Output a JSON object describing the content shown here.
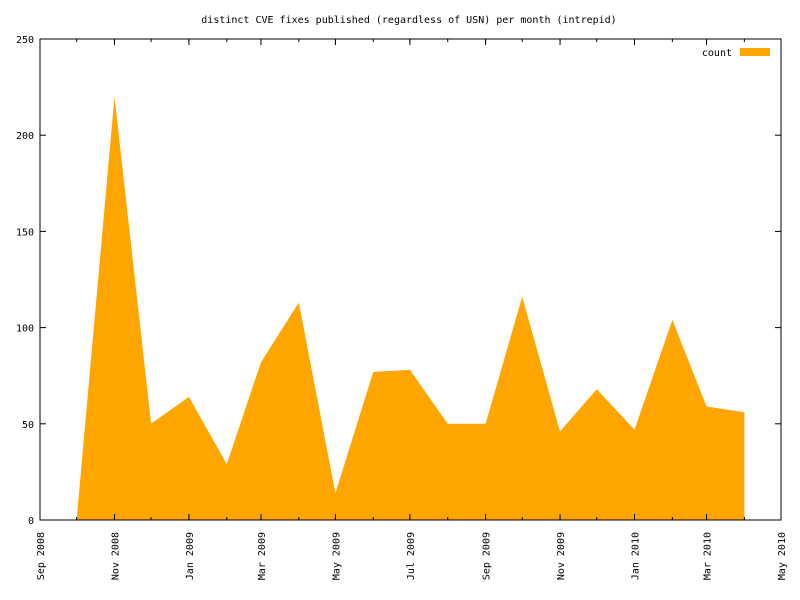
{
  "chart_data": {
    "type": "area",
    "title": "distinct CVE fixes published (regardless of USN) per month (intrepid)",
    "xlabel": "",
    "ylabel": "",
    "ylim": [
      0,
      250
    ],
    "yticks": [
      0,
      50,
      100,
      150,
      200,
      250
    ],
    "xlim": [
      "2008-09-01",
      "2010-05-01"
    ],
    "xticks": [
      {
        "date": "2008-09-01",
        "label": "Sep 2008"
      },
      {
        "date": "2008-11-01",
        "label": "Nov 2008"
      },
      {
        "date": "2009-01-01",
        "label": "Jan 2009"
      },
      {
        "date": "2009-03-01",
        "label": "Mar 2009"
      },
      {
        "date": "2009-05-01",
        "label": "May 2009"
      },
      {
        "date": "2009-07-01",
        "label": "Jul 2009"
      },
      {
        "date": "2009-09-01",
        "label": "Sep 2009"
      },
      {
        "date": "2009-11-01",
        "label": "Nov 2009"
      },
      {
        "date": "2010-01-01",
        "label": "Jan 2010"
      },
      {
        "date": "2010-03-01",
        "label": "Mar 2010"
      },
      {
        "date": "2010-05-01",
        "label": "May 2010"
      }
    ],
    "grid": false,
    "legend": "top-right",
    "color": "#ffa500",
    "series": [
      {
        "name": "count",
        "x": [
          "2008-10-01",
          "2008-11-01",
          "2008-12-01",
          "2009-01-01",
          "2009-02-01",
          "2009-03-01",
          "2009-04-01",
          "2009-05-01",
          "2009-06-01",
          "2009-07-01",
          "2009-08-01",
          "2009-09-01",
          "2009-10-01",
          "2009-11-01",
          "2009-12-01",
          "2010-01-01",
          "2010-02-01",
          "2010-03-01",
          "2010-04-01"
        ],
        "values": [
          0,
          220,
          50,
          64,
          29,
          82,
          113,
          14,
          77,
          78,
          50,
          50,
          116,
          46,
          68,
          47,
          104,
          59,
          56
        ]
      }
    ]
  }
}
